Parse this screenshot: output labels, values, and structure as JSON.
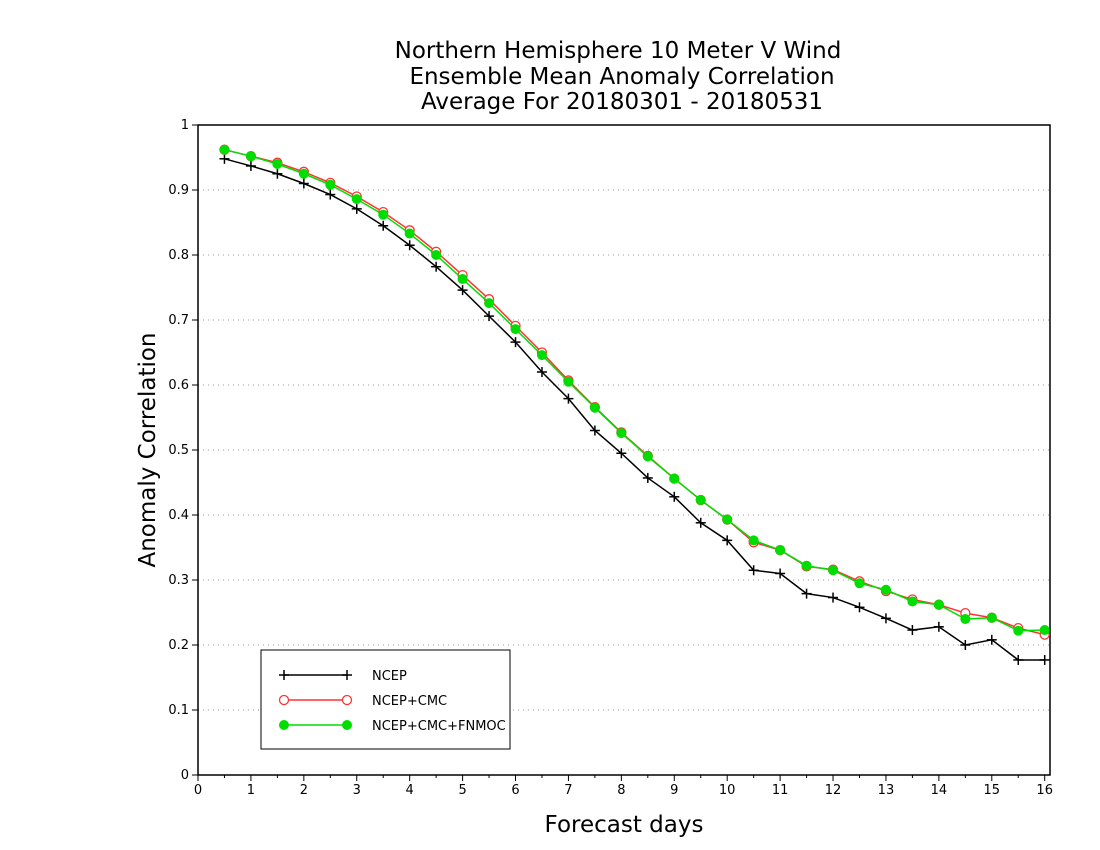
{
  "chart_data": {
    "type": "line",
    "title_lines": [
      "Northern Hemisphere 10 Meter V Wind",
      "Ensemble Mean Anomaly Correlation",
      "Average For 20180301 - 20180531"
    ],
    "xlabel": "Forecast days",
    "ylabel": "Anomaly Correlation",
    "xlim": [
      0,
      16.1
    ],
    "ylim": [
      0,
      1
    ],
    "xticks": [
      "0",
      "1",
      "2",
      "3",
      "4",
      "5",
      "6",
      "7",
      "8",
      "9",
      "10",
      "11",
      "12",
      "13",
      "14",
      "15",
      "16"
    ],
    "yticks": [
      "0",
      "0.1",
      "0.2",
      "0.3",
      "0.4",
      "0.5",
      "0.6",
      "0.7",
      "0.8",
      "0.9",
      "1"
    ],
    "grid": "horizontal dotted",
    "legend_position": "bottom-left",
    "x": [
      0.5,
      1,
      1.5,
      2,
      2.5,
      3,
      3.5,
      4,
      4.5,
      5,
      5.5,
      6,
      6.5,
      7,
      7.5,
      8,
      8.5,
      9,
      9.5,
      10,
      10.5,
      11,
      11.5,
      12,
      12.5,
      13,
      13.5,
      14,
      14.5,
      15,
      15.5,
      16
    ],
    "series": [
      {
        "name": "NCEP",
        "color": "#000000",
        "marker": "plus",
        "values": [
          0.948,
          0.937,
          0.925,
          0.91,
          0.893,
          0.871,
          0.845,
          0.815,
          0.782,
          0.746,
          0.706,
          0.666,
          0.62,
          0.579,
          0.53,
          0.495,
          0.457,
          0.428,
          0.388,
          0.361,
          0.315,
          0.31,
          0.279,
          0.273,
          0.258,
          0.241,
          0.223,
          0.228,
          0.2,
          0.208,
          0.177,
          0.177
        ]
      },
      {
        "name": "NCEP+CMC",
        "color": "#ff3333",
        "marker": "open-circle",
        "values": [
          0.962,
          0.952,
          0.942,
          0.928,
          0.911,
          0.89,
          0.866,
          0.838,
          0.805,
          0.769,
          0.732,
          0.691,
          0.65,
          0.607,
          0.566,
          0.527,
          0.491,
          0.456,
          0.423,
          0.393,
          0.358,
          0.346,
          0.321,
          0.316,
          0.298,
          0.283,
          0.27,
          0.262,
          0.249,
          0.242,
          0.226,
          0.216
        ]
      },
      {
        "name": "NCEP+CMC+FNMOC",
        "color": "#00dd00",
        "marker": "filled-circle",
        "values": [
          0.962,
          0.952,
          0.94,
          0.925,
          0.908,
          0.886,
          0.862,
          0.833,
          0.8,
          0.763,
          0.726,
          0.686,
          0.646,
          0.605,
          0.565,
          0.526,
          0.49,
          0.456,
          0.423,
          0.393,
          0.361,
          0.346,
          0.322,
          0.315,
          0.295,
          0.285,
          0.267,
          0.262,
          0.24,
          0.242,
          0.222,
          0.223
        ]
      }
    ]
  }
}
